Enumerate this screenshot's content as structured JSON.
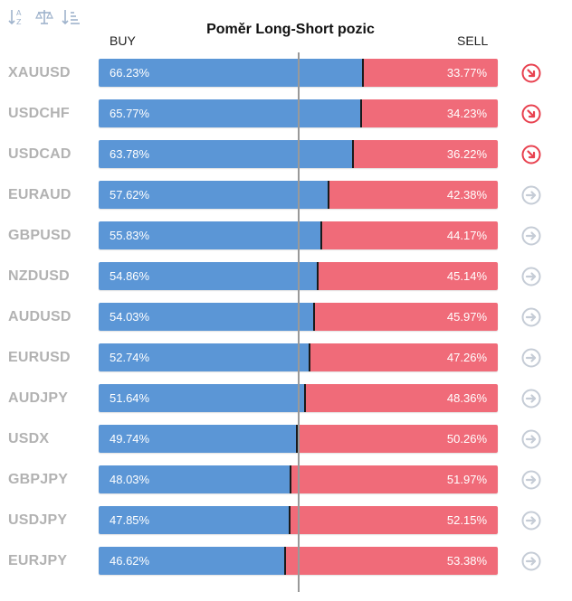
{
  "chart_data": {
    "type": "bar",
    "title": "Poměr Long-Short pozic",
    "buy_label": "BUY",
    "sell_label": "SELL",
    "categories": [
      "XAUUSD",
      "USDCHF",
      "USDCAD",
      "EURAUD",
      "GBPUSD",
      "NZDUSD",
      "AUDUSD",
      "EURUSD",
      "AUDJPY",
      "USDX",
      "GBPJPY",
      "USDJPY",
      "EURJPY"
    ],
    "series": [
      {
        "name": "BUY",
        "values": [
          66.23,
          65.77,
          63.78,
          57.62,
          55.83,
          54.86,
          54.03,
          52.74,
          51.64,
          49.74,
          48.03,
          47.85,
          46.62
        ]
      },
      {
        "name": "SELL",
        "values": [
          33.77,
          34.23,
          36.22,
          42.38,
          44.17,
          45.14,
          45.97,
          47.26,
          48.36,
          50.26,
          51.97,
          52.15,
          53.38
        ]
      }
    ],
    "buy_text": [
      "66.23%",
      "65.77%",
      "63.78%",
      "57.62%",
      "55.83%",
      "54.86%",
      "54.03%",
      "52.74%",
      "51.64%",
      "49.74%",
      "48.03%",
      "47.85%",
      "46.62%"
    ],
    "sell_text": [
      "33.77%",
      "34.23%",
      "36.22%",
      "42.38%",
      "44.17%",
      "45.14%",
      "45.97%",
      "47.26%",
      "48.36%",
      "50.26%",
      "51.97%",
      "52.15%",
      "53.38%"
    ],
    "signal_icons": [
      "arrow-down-right-icon",
      "arrow-down-right-icon",
      "arrow-down-right-icon",
      "arrow-right-icon",
      "arrow-right-icon",
      "arrow-right-icon",
      "arrow-right-icon",
      "arrow-right-icon",
      "arrow-right-icon",
      "arrow-right-icon",
      "arrow-right-icon",
      "arrow-right-icon",
      "arrow-right-icon"
    ],
    "ylim": [
      0,
      100
    ],
    "stacked": true,
    "orientation": "horizontal",
    "reference_line_at": 50,
    "colors": {
      "buy": "#5b96d6",
      "sell": "#f06b79",
      "signal_down": "#e8414f",
      "signal_neutral": "#c5ccd6",
      "symbol_text": "#b2b2b2"
    }
  },
  "toolbar": {
    "icons": [
      "sort-alpha-icon",
      "balance-scale-icon",
      "sort-list-icon"
    ]
  }
}
